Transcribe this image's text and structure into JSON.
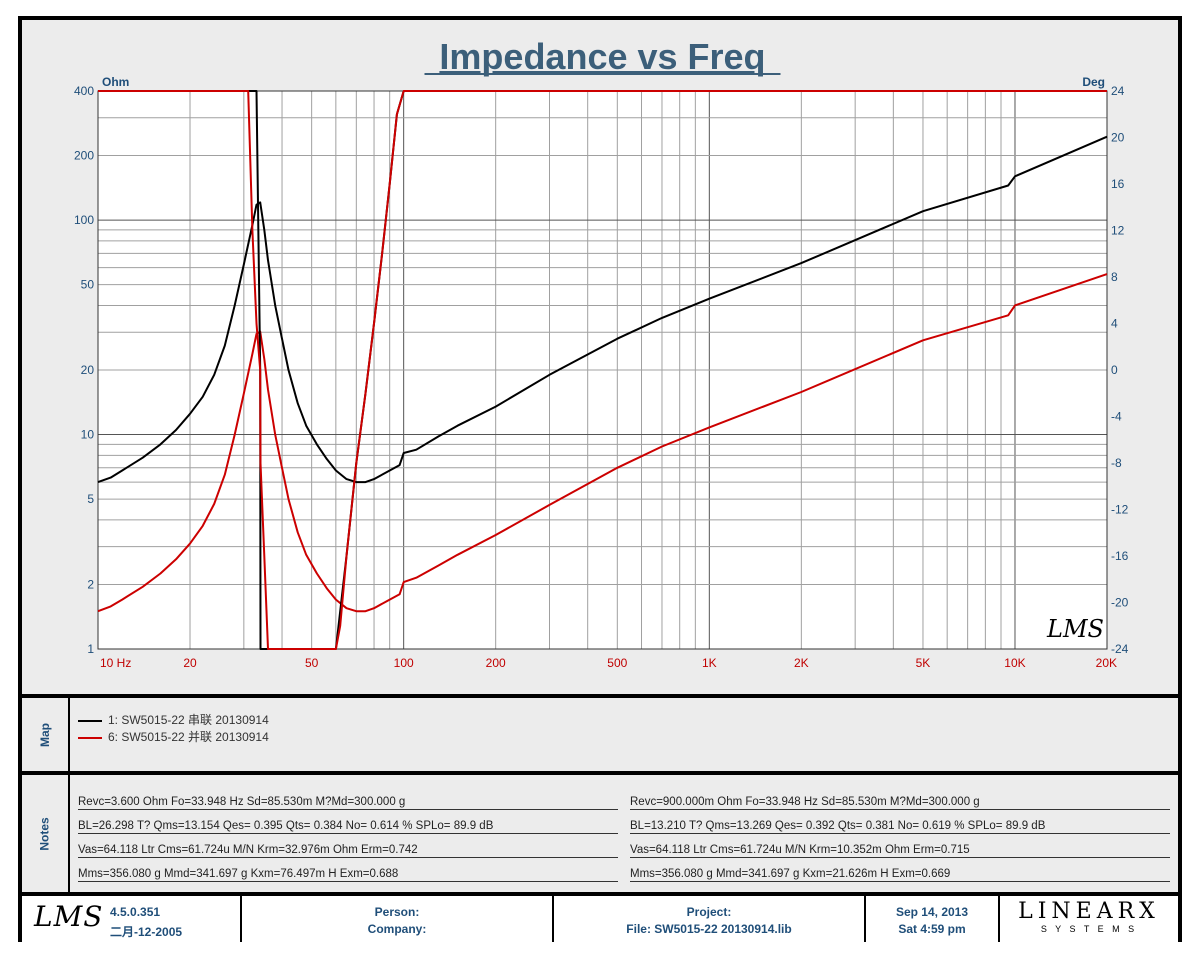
{
  "chart_data": {
    "type": "line",
    "title": "Impedance vs Freq",
    "xscale": "log",
    "xlim": [
      10,
      20000
    ],
    "x_ticks": [
      10,
      20,
      50,
      100,
      200,
      500,
      1000,
      2000,
      5000,
      10000,
      20000
    ],
    "x_tick_labels": [
      "10  Hz",
      "20",
      "50",
      "100",
      "200",
      "500",
      "1K",
      "2K",
      "5K",
      "10K",
      "20K"
    ],
    "y_left_label": "Ohm",
    "y_left_scale": "log",
    "y_left_lim": [
      1,
      400
    ],
    "y_left_ticks": [
      1,
      2,
      5,
      10,
      20,
      50,
      100,
      200,
      400
    ],
    "y_right_label": "Deg",
    "y_right_lim": [
      -24,
      24
    ],
    "y_right_ticks": [
      24,
      20,
      16,
      12,
      8,
      4,
      0,
      -4,
      -8,
      -12,
      -16,
      -20,
      -24
    ],
    "grid": true,
    "series": [
      {
        "name": "1: SW5015-22  串联 20130914",
        "color": "#000000",
        "axis": "left",
        "x": [
          10,
          11,
          12,
          14,
          16,
          18,
          20,
          22,
          24,
          26,
          28,
          30,
          32,
          33,
          33.948,
          35,
          36,
          38,
          40,
          42,
          45,
          48,
          52,
          56,
          60,
          65,
          70,
          75,
          80,
          90,
          97,
          100,
          110,
          130,
          150,
          200,
          300,
          500,
          700,
          1000,
          2000,
          5000,
          9500,
          10000,
          20000
        ],
        "y": [
          6,
          6.3,
          6.8,
          7.8,
          9,
          10.5,
          12.5,
          15,
          19,
          26,
          40,
          62,
          95,
          118,
          121,
          90,
          65,
          40,
          28,
          20,
          14,
          11,
          9,
          7.7,
          6.8,
          6.2,
          6,
          6,
          6.2,
          6.8,
          7.2,
          8.2,
          8.5,
          9.8,
          11,
          13.5,
          19,
          28,
          35,
          43,
          63,
          110,
          145,
          160,
          245
        ]
      },
      {
        "name": "6: SW5015-22  并联 20130914",
        "color": "#cc0000",
        "axis": "left",
        "x": [
          10,
          11,
          12,
          14,
          16,
          18,
          20,
          22,
          24,
          26,
          28,
          30,
          32,
          33,
          33.948,
          35,
          36,
          38,
          40,
          42,
          45,
          48,
          52,
          56,
          60,
          65,
          70,
          75,
          80,
          90,
          97,
          100,
          110,
          130,
          150,
          200,
          300,
          500,
          700,
          1000,
          2000,
          5000,
          9500,
          10000,
          20000
        ],
        "y": [
          1.5,
          1.58,
          1.7,
          1.95,
          2.25,
          2.62,
          3.1,
          3.75,
          4.75,
          6.5,
          10,
          15.5,
          23.8,
          29.5,
          30.2,
          22.5,
          16.2,
          10,
          7,
          5,
          3.5,
          2.75,
          2.25,
          1.92,
          1.7,
          1.55,
          1.5,
          1.5,
          1.55,
          1.7,
          1.8,
          2.05,
          2.15,
          2.45,
          2.75,
          3.4,
          4.7,
          7,
          8.8,
          10.8,
          15.8,
          27.5,
          36,
          40,
          56
        ]
      },
      {
        "name": "1: SW5015-22  串联 20130914 (phase)",
        "color": "#000000",
        "axis": "right",
        "x": [
          31,
          32,
          33,
          33.948,
          34,
          35,
          60,
          65,
          70,
          75,
          80,
          85,
          90,
          95,
          100
        ],
        "y": [
          24,
          24,
          24,
          0,
          -24,
          -24,
          -24,
          -16,
          -8,
          -2,
          4,
          10,
          16,
          22,
          24
        ]
      },
      {
        "name": "6: SW5015-22  并联 20130914 (phase)",
        "color": "#cc0000",
        "axis": "right",
        "x": [
          10,
          30,
          31,
          32,
          33,
          33.948,
          34,
          35,
          36,
          60,
          62,
          65,
          70,
          75,
          80,
          85,
          90,
          95,
          100,
          20000
        ],
        "y": [
          24,
          24,
          24,
          12,
          4,
          0,
          -8,
          -16,
          -24,
          -24,
          -22,
          -16,
          -8,
          -2,
          4,
          10,
          16,
          22,
          24,
          24
        ]
      }
    ]
  },
  "signature": "LMS",
  "map": {
    "label": "Map",
    "entries": [
      {
        "text": "1: SW5015-22  串联 20130914",
        "color": "#000000"
      },
      {
        "text": "6: SW5015-22  并联 20130914",
        "color": "#cc0000"
      }
    ]
  },
  "notes": {
    "label": "Notes",
    "left": [
      "Revc=3.600 Ohm  Fo=33.948 Hz  Sd=85.530m M?Md=300.000 g",
      "BL=26.298 T?  Qms=13.154  Qes= 0.395  Qts= 0.384  No= 0.614 %  SPLo= 89.9 dB",
      "Vas=64.118 Ltr  Cms=61.724u M/N  Krm=32.976m Ohm  Erm=0.742",
      "Mms=356.080 g  Mmd=341.697 g  Kxm=76.497m H  Exm=0.688"
    ],
    "right": [
      "Revc=900.000m Ohm  Fo=33.948 Hz  Sd=85.530m M?Md=300.000 g",
      "BL=13.210 T?  Qms=13.269  Qes= 0.392  Qts= 0.381  No= 0.619 %  SPLo= 89.9 dB",
      "Vas=64.118 Ltr  Cms=61.724u M/N  Krm=10.352m Ohm  Erm=0.715",
      "Mms=356.080 g  Mmd=341.697 g  Kxm=21.626m H  Exm=0.669"
    ]
  },
  "footer": {
    "logo": "LMS",
    "version": "4.5.0.351",
    "date": "二月-12-2005",
    "person_label": "Person:",
    "company_label": "Company:",
    "project_label": "Project:",
    "file_label": "File:  SW5015-22  20130914.lib",
    "run_date": "Sep 14, 2013",
    "run_time": "Sat  4:59 pm",
    "brand": "LINEARX",
    "brand_sub": "S Y S T E M S"
  }
}
